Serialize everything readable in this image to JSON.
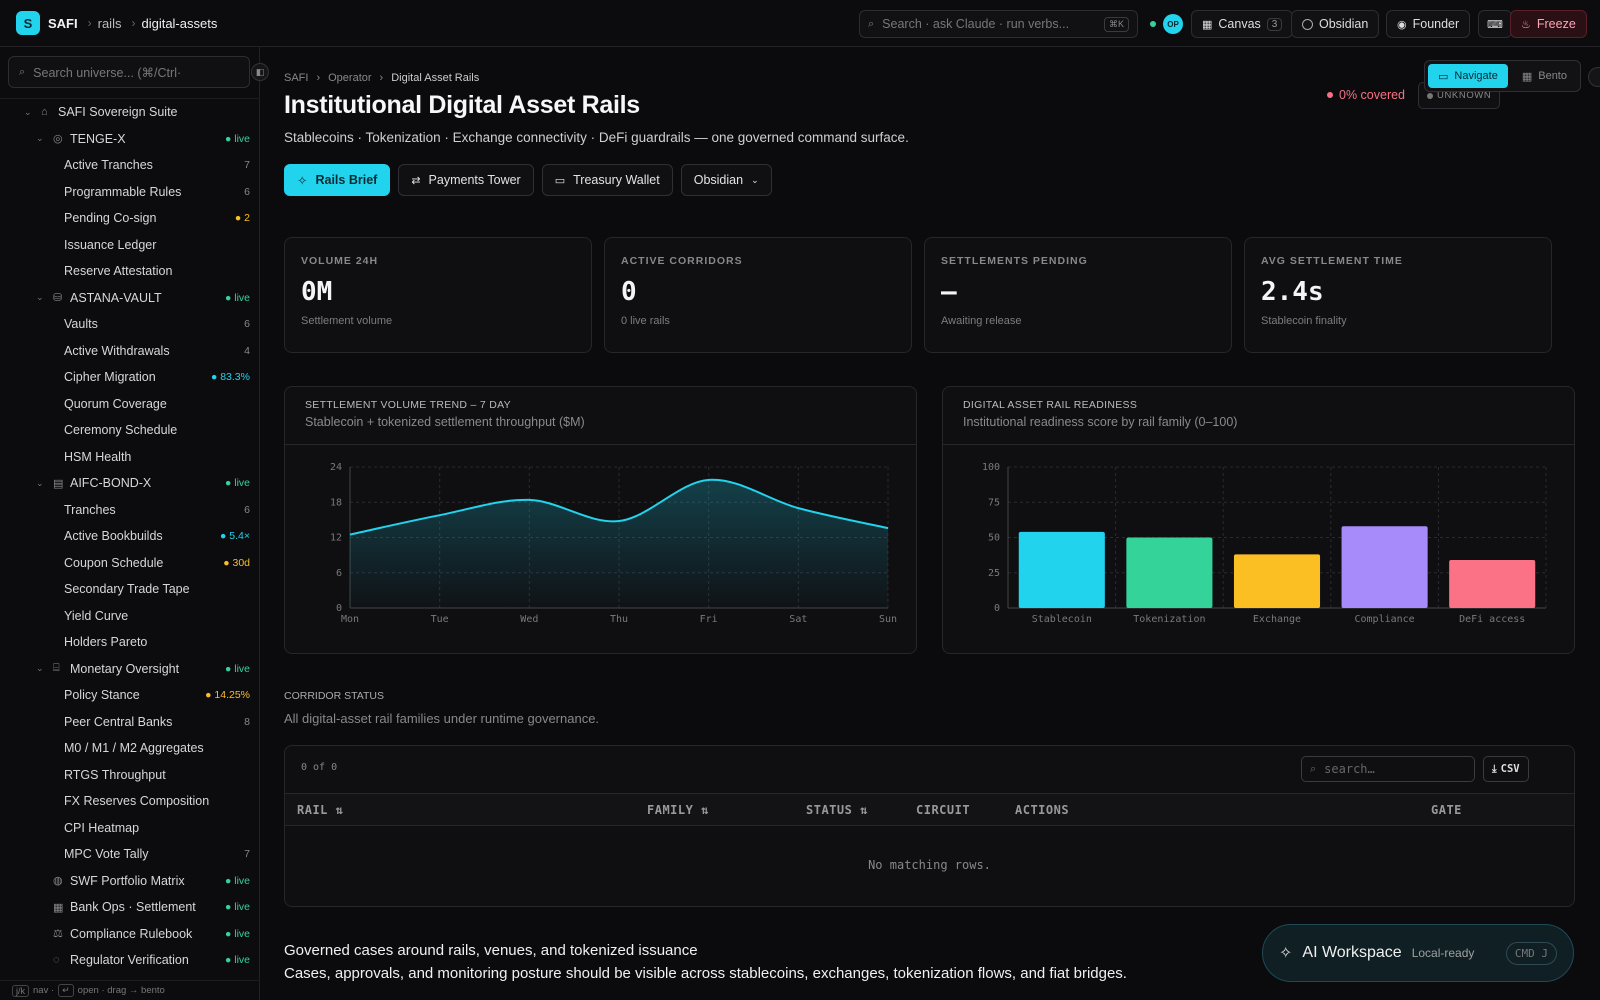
{
  "topbar": {
    "logo": "S",
    "app": "SAFI",
    "crumbs": [
      "rails",
      "digital-assets"
    ],
    "search_placeholder": "Search · ask Claude · run verbs...",
    "search_kbd": "⌘K",
    "avatar": "OP",
    "canvas_label": "Canvas",
    "canvas_count": "3",
    "obsidian_label": "Obsidian",
    "founder_label": "Founder",
    "freeze_label": "Freeze"
  },
  "sidebar": {
    "search_placeholder": "Search universe... (⌘/Ctrl·",
    "footer": {
      "keys1": "j/k",
      "t1": "nav ·",
      "keys2": "↵",
      "t2": "open · drag → bento"
    },
    "items": [
      {
        "label": "SAFI Sovereign Suite",
        "level": 0,
        "chev": true,
        "icon": "⌂",
        "badge": "",
        "kind": ""
      },
      {
        "label": "TENGE-X",
        "level": 1,
        "chev": true,
        "icon": "◎",
        "badge": "● live",
        "kind": "live"
      },
      {
        "label": "Active Tranches",
        "level": 2,
        "badge": "7",
        "kind": ""
      },
      {
        "label": "Programmable Rules",
        "level": 2,
        "badge": "6",
        "kind": ""
      },
      {
        "label": "Pending Co-sign",
        "level": 2,
        "badge": "● 2",
        "kind": "amber"
      },
      {
        "label": "Issuance Ledger",
        "level": 2,
        "badge": "",
        "kind": ""
      },
      {
        "label": "Reserve Attestation",
        "level": 2,
        "badge": "",
        "kind": ""
      },
      {
        "label": "ASTANA-VAULT",
        "level": 1,
        "chev": true,
        "icon": "⛁",
        "badge": "● live",
        "kind": "live"
      },
      {
        "label": "Vaults",
        "level": 2,
        "badge": "6",
        "kind": ""
      },
      {
        "label": "Active Withdrawals",
        "level": 2,
        "badge": "4",
        "kind": ""
      },
      {
        "label": "Cipher Migration",
        "level": 2,
        "badge": "● 83.3%",
        "kind": "cyan"
      },
      {
        "label": "Quorum Coverage",
        "level": 2,
        "badge": "",
        "kind": ""
      },
      {
        "label": "Ceremony Schedule",
        "level": 2,
        "badge": "",
        "kind": ""
      },
      {
        "label": "HSM Health",
        "level": 2,
        "badge": "",
        "kind": ""
      },
      {
        "label": "AIFC-BOND-X",
        "level": 1,
        "chev": true,
        "icon": "▤",
        "badge": "● live",
        "kind": "live"
      },
      {
        "label": "Tranches",
        "level": 2,
        "badge": "6",
        "kind": ""
      },
      {
        "label": "Active Bookbuilds",
        "level": 2,
        "badge": "● 5.4×",
        "kind": "cyan"
      },
      {
        "label": "Coupon Schedule",
        "level": 2,
        "badge": "● 30d",
        "kind": "amber"
      },
      {
        "label": "Secondary Trade Tape",
        "level": 2,
        "badge": "",
        "kind": ""
      },
      {
        "label": "Yield Curve",
        "level": 2,
        "badge": "",
        "kind": ""
      },
      {
        "label": "Holders Pareto",
        "level": 2,
        "badge": "",
        "kind": ""
      },
      {
        "label": "Monetary Oversight",
        "level": 1,
        "chev": true,
        "icon": "⌸",
        "badge": "● live",
        "kind": "live"
      },
      {
        "label": "Policy Stance",
        "level": 2,
        "badge": "● 14.25%",
        "kind": "amber"
      },
      {
        "label": "Peer Central Banks",
        "level": 2,
        "badge": "8",
        "kind": ""
      },
      {
        "label": "M0 / M1 / M2 Aggregates",
        "level": 2,
        "badge": "",
        "kind": ""
      },
      {
        "label": "RTGS Throughput",
        "level": 2,
        "badge": "",
        "kind": ""
      },
      {
        "label": "FX Reserves Composition",
        "level": 2,
        "badge": "",
        "kind": ""
      },
      {
        "label": "CPI Heatmap",
        "level": 2,
        "badge": "",
        "kind": ""
      },
      {
        "label": "MPC Vote Tally",
        "level": 2,
        "badge": "7",
        "kind": ""
      },
      {
        "label": "SWF Portfolio Matrix",
        "level": 1,
        "chev": false,
        "icon": "◍",
        "badge": "● live",
        "kind": "live"
      },
      {
        "label": "Bank Ops · Settlement",
        "level": 1,
        "chev": false,
        "icon": "▦",
        "badge": "● live",
        "kind": "live"
      },
      {
        "label": "Compliance Rulebook",
        "level": 1,
        "chev": false,
        "icon": "⚖",
        "badge": "● live",
        "kind": "live"
      },
      {
        "label": "Regulator Verification",
        "level": 1,
        "chev": false,
        "icon": "◌",
        "badge": "● live",
        "kind": "live"
      }
    ]
  },
  "main": {
    "breadcrumb": [
      "SAFI",
      "Operator",
      "Digital Asset Rails"
    ],
    "title": "Institutional Digital Asset Rails",
    "subtitle": "Stablecoins · Tokenization · Exchange connectivity · DeFi guardrails — one governed command surface.",
    "buttons": {
      "brief": "Rails Brief",
      "payments": "Payments Tower",
      "treasury": "Treasury Wallet",
      "obsidian": "Obsidian"
    },
    "coverage": "0%  covered",
    "unknown": "UNKNOWN",
    "view": {
      "navigate": "Navigate",
      "bento": "Bento"
    },
    "kpis": [
      {
        "label": "VOLUME 24H",
        "value": "0M",
        "sub": "Settlement volume"
      },
      {
        "label": "ACTIVE CORRIDORS",
        "value": "0",
        "sub": "0 live rails"
      },
      {
        "label": "SETTLEMENTS PENDING",
        "value": "—",
        "sub": "Awaiting release"
      },
      {
        "label": "AVG SETTLEMENT TIME",
        "value": "2.4s",
        "sub": "Stablecoin finality"
      }
    ],
    "trend_card": {
      "title": "SETTLEMENT VOLUME TREND – 7 DAY",
      "subtitle": "Stablecoin + tokenized settlement throughput ($M)"
    },
    "readiness_card": {
      "title": "DIGITAL ASSET RAIL READINESS",
      "subtitle": "Institutional readiness score by rail family (0–100)"
    },
    "corridor": {
      "title": "CORRIDOR STATUS",
      "subtitle": "All digital-asset rail families under runtime governance."
    },
    "table": {
      "count": "0 of 0",
      "search_placeholder": "search…",
      "csv": "CSV",
      "columns": [
        "RAIL ⇅",
        "FAMILY ⇅",
        "STATUS ⇅",
        "CIRCUIT",
        "ACTIONS",
        "GATE"
      ],
      "empty": "No matching rows."
    },
    "governed": {
      "title": "Governed cases around rails, venues, and tokenized issuance",
      "subtitle": "Cases, approvals, and monitoring posture should be visible across stablecoins, exchanges, tokenization flows, and fiat bridges."
    },
    "ai": {
      "title": "AI Workspace",
      "status": "Local-ready",
      "kbd": "CMD J"
    }
  },
  "colors": {
    "accent": "#22d3ee",
    "live": "#34d399",
    "amber": "#fbbf24",
    "danger": "#f87185"
  },
  "chart_data": [
    {
      "type": "area",
      "title": "SETTLEMENT VOLUME TREND – 7 DAY",
      "subtitle": "Stablecoin + tokenized settlement throughput ($M)",
      "categories": [
        "Mon",
        "Tue",
        "Wed",
        "Thu",
        "Fri",
        "Sat",
        "Sun"
      ],
      "values": [
        12.5,
        15.8,
        18.4,
        14.8,
        21.8,
        17.0,
        13.6
      ],
      "ylim": [
        0,
        24
      ],
      "yticks": [
        "0",
        "6",
        "12",
        "18",
        "24"
      ],
      "color": "#22d3ee",
      "grid": true
    },
    {
      "type": "bar",
      "title": "DIGITAL ASSET RAIL READINESS",
      "subtitle": "Institutional readiness score by rail family (0–100)",
      "categories": [
        "Stablecoin",
        "Tokenization",
        "Exchange",
        "Compliance",
        "DeFi access"
      ],
      "values": [
        54,
        50,
        38,
        58,
        34
      ],
      "colors": [
        "#22d3ee",
        "#34d399",
        "#fbbf24",
        "#a78bfa",
        "#fb7185"
      ],
      "ylim": [
        0,
        100
      ],
      "yticks": [
        "0",
        "25",
        "50",
        "75",
        "100"
      ],
      "grid": true
    }
  ]
}
